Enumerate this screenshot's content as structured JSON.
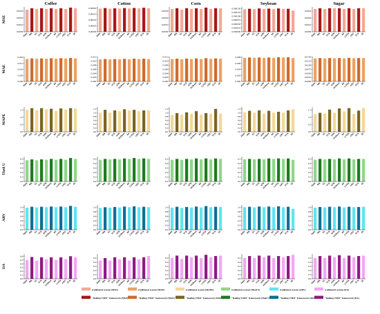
{
  "chart_data": {
    "type": "bar",
    "layout": "grid",
    "columns": [
      "Coffee",
      "Cotton",
      "Corn",
      "Soybean",
      "Sugar"
    ],
    "rows": [
      {
        "metric": "MSE",
        "ticks": [
          [
            "0.0003",
            "0.0002",
            "0.0001",
            "0.0000"
          ],
          [
            "0.00020",
            "0.00015",
            "0.00010",
            "0.00005",
            "0.00000"
          ],
          [
            "0.0003",
            "0.0002",
            "0.0001",
            "0.0000"
          ],
          [
            "0.000150",
            "0.000125",
            "0.000100",
            "0.000075",
            "0.000050",
            "0.000025",
            "0.000000"
          ],
          [
            "0.0003",
            "0.0002",
            "0.0001",
            "0.0000"
          ]
        ],
        "ylim": [
          [
            0,
            0.00036
          ],
          [
            0,
            0.00021
          ],
          [
            0,
            0.00036
          ],
          [
            0,
            0.00016
          ],
          [
            0,
            0.00036
          ]
        ],
        "values": [
          [
            0.00032,
            0.00034,
            0.00033,
            0.00034,
            0.00033,
            0.00034,
            0.00033,
            0.00034,
            0.00033,
            0.00035,
            0.00034
          ],
          [
            0.000195,
            0.0002,
            0.000195,
            0.000198,
            0.000196,
            0.0002,
            0.000197,
            0.000201,
            0.000198,
            0.000203,
            0.000199
          ],
          [
            0.00033,
            0.00034,
            0.00032,
            0.00034,
            0.00033,
            0.00034,
            0.00033,
            0.00035,
            0.00033,
            0.00034,
            0.00034
          ],
          [
            0.000145,
            0.000148,
            0.000146,
            0.00015,
            0.000147,
            0.000149,
            0.000146,
            0.00015,
            0.000147,
            0.000148,
            0.000136
          ],
          [
            0.00033,
            0.00034,
            0.00033,
            0.00034,
            0.00034,
            0.00034,
            0.00033,
            0.00034,
            0.00033,
            0.00034,
            0.00034
          ]
        ]
      },
      {
        "metric": "MAE",
        "ticks": [
          [
            "0.020",
            "0.015",
            "0.010",
            "0.005",
            "0.000"
          ],
          [
            "0.012",
            "0.010",
            "0.008",
            "0.006",
            "0.004",
            "0.002",
            "0.000"
          ],
          [
            "0.012",
            "0.010",
            "0.008",
            "0.006",
            "0.004",
            "0.002",
            "0.000"
          ],
          [
            "0.008",
            "0.006",
            "0.004",
            "0.002",
            "0.000"
          ],
          [
            "0.0150",
            "0.0125",
            "0.0100",
            "0.0075",
            "0.0050",
            "0.0025",
            "0.0000"
          ]
        ],
        "ylim": [
          [
            0,
            0.0205
          ],
          [
            0,
            0.0122
          ],
          [
            0,
            0.0122
          ],
          [
            0,
            0.0082
          ],
          [
            0,
            0.0152
          ]
        ],
        "values": [
          [
            0.0185,
            0.019,
            0.0187,
            0.019,
            0.0188,
            0.0191,
            0.0188,
            0.0192,
            0.0189,
            0.0194,
            0.019
          ],
          [
            0.0108,
            0.011,
            0.0108,
            0.011,
            0.0109,
            0.0111,
            0.0109,
            0.0112,
            0.011,
            0.0112,
            0.011
          ],
          [
            0.011,
            0.0112,
            0.0109,
            0.0112,
            0.011,
            0.0113,
            0.011,
            0.0114,
            0.0111,
            0.0113,
            0.0112
          ],
          [
            0.0078,
            0.0079,
            0.0078,
            0.0079,
            0.0078,
            0.0079,
            0.0078,
            0.008,
            0.0079,
            0.008,
            0.0077
          ],
          [
            0.0141,
            0.0143,
            0.0141,
            0.0143,
            0.0142,
            0.0143,
            0.0141,
            0.0144,
            0.0142,
            0.0143,
            0.0143
          ]
        ]
      },
      {
        "metric": "MAPE",
        "ticks": [
          [
            "1.5",
            "1.0",
            "0.5",
            "0.0"
          ],
          [
            "1.2",
            "1.0",
            "0.8",
            "0.6",
            "0.4",
            "0.2",
            "0.0"
          ],
          [
            "1.2",
            "1.0",
            "0.8",
            "0.6",
            "0.4",
            "0.2",
            "0.0"
          ],
          [
            "1.2",
            "1.0",
            "0.8",
            "0.6",
            "0.4",
            "0.2",
            "0.0"
          ],
          [
            "1.5",
            "1.0",
            "0.5",
            "0.0"
          ]
        ],
        "ylim": [
          [
            0,
            1.7
          ],
          [
            0,
            1.3
          ],
          [
            0,
            1.3
          ],
          [
            0,
            1.3
          ],
          [
            0,
            1.7
          ]
        ],
        "values": [
          [
            1.5,
            1.62,
            1.47,
            1.62,
            1.54,
            1.58,
            1.42,
            1.6,
            1.52,
            1.62,
            1.6
          ],
          [
            1.0,
            1.15,
            1.0,
            1.12,
            1.08,
            1.18,
            1.12,
            1.15,
            1.08,
            1.12,
            1.12
          ],
          [
            0.88,
            0.98,
            0.9,
            1.02,
            0.95,
            1.08,
            0.9,
            0.98,
            0.95,
            1.2,
            0.95
          ],
          [
            1.02,
            1.1,
            1.0,
            1.12,
            0.95,
            1.1,
            1.0,
            1.05,
            1.0,
            1.12,
            1.18
          ],
          [
            1.2,
            1.3,
            1.25,
            1.52,
            1.3,
            1.6,
            1.4,
            1.62,
            1.22,
            1.45,
            1.62
          ]
        ]
      },
      {
        "metric": "Theil U",
        "ticks": [
          [
            "0.5",
            "0.4",
            "0.3",
            "0.2",
            "0.1",
            "0.0"
          ],
          [
            "0.5",
            "0.4",
            "0.3",
            "0.2",
            "0.1",
            "0.0"
          ],
          [
            "0.5",
            "0.4",
            "0.3",
            "0.2",
            "0.1",
            "0.0"
          ],
          [
            "0.5",
            "0.4",
            "0.3",
            "0.2",
            "0.1",
            "0.0"
          ],
          [
            "0.5",
            "0.4",
            "0.3",
            "0.2",
            "0.1",
            "0.0"
          ]
        ],
        "ylim": [
          [
            0,
            0.55
          ],
          [
            0,
            0.55
          ],
          [
            0,
            0.55
          ],
          [
            0,
            0.55
          ],
          [
            0,
            0.55
          ]
        ],
        "values": [
          [
            0.47,
            0.49,
            0.47,
            0.49,
            0.48,
            0.5,
            0.48,
            0.5,
            0.48,
            0.52,
            0.5
          ],
          [
            0.48,
            0.5,
            0.49,
            0.5,
            0.49,
            0.51,
            0.5,
            0.52,
            0.5,
            0.51,
            0.5
          ],
          [
            0.48,
            0.5,
            0.48,
            0.5,
            0.49,
            0.51,
            0.49,
            0.51,
            0.49,
            0.51,
            0.5
          ],
          [
            0.49,
            0.5,
            0.49,
            0.5,
            0.49,
            0.51,
            0.5,
            0.51,
            0.5,
            0.51,
            0.48
          ],
          [
            0.48,
            0.5,
            0.49,
            0.5,
            0.49,
            0.51,
            0.49,
            0.51,
            0.49,
            0.5,
            0.5
          ]
        ]
      },
      {
        "metric": "ARV",
        "ticks": [
          [
            "1.0",
            "0.8",
            "0.6",
            "0.4",
            "0.2",
            "0.0"
          ],
          [
            "1.0",
            "0.8",
            "0.6",
            "0.4",
            "0.2",
            "0.0"
          ],
          [
            "1.0",
            "0.8",
            "0.6",
            "0.4",
            "0.2",
            "0.0"
          ],
          [
            "1.0",
            "0.8",
            "0.6",
            "0.4",
            "0.2",
            "0.0"
          ],
          [
            "1.0",
            "0.8",
            "0.6",
            "0.4",
            "0.2",
            "0.0"
          ]
        ],
        "ylim": [
          [
            0,
            1.1
          ],
          [
            0,
            1.1
          ],
          [
            0,
            1.1
          ],
          [
            0,
            1.1
          ],
          [
            0,
            1.1
          ]
        ],
        "values": [
          [
            0.98,
            1.02,
            0.99,
            1.02,
            1.0,
            1.03,
            1.0,
            1.03,
            1.0,
            1.06,
            1.02
          ],
          [
            0.97,
            1.0,
            0.98,
            1.01,
            0.99,
            1.03,
            1.0,
            1.04,
            1.0,
            1.02,
            1.0
          ],
          [
            0.98,
            1.02,
            0.97,
            1.01,
            0.99,
            1.03,
            0.99,
            1.05,
            1.0,
            1.02,
            1.01
          ],
          [
            1.0,
            1.02,
            0.99,
            1.03,
            1.0,
            1.03,
            1.0,
            1.04,
            1.0,
            1.02,
            0.93
          ],
          [
            0.98,
            1.01,
            0.99,
            1.02,
            1.0,
            1.03,
            0.99,
            1.02,
            1.0,
            1.01,
            1.02
          ]
        ]
      },
      {
        "metric": "DA",
        "ticks": [
          [
            "0.6",
            "0.5",
            "0.4",
            "0.3",
            "0.2",
            "0.1",
            "0.0"
          ],
          [
            "0.5",
            "0.4",
            "0.3",
            "0.2",
            "0.1",
            "0.0"
          ],
          [
            "0.5",
            "0.4",
            "0.3",
            "0.2",
            "0.1",
            "0.0"
          ],
          [
            "0.5",
            "0.4",
            "0.3",
            "0.2",
            "0.1",
            "0.0"
          ],
          [
            "0.5",
            "0.4",
            "0.3",
            "0.2",
            "0.1",
            "0.0"
          ]
        ],
        "ylim": [
          [
            0,
            0.66
          ],
          [
            0,
            0.6
          ],
          [
            0,
            0.6
          ],
          [
            0,
            0.6
          ],
          [
            0,
            0.6
          ]
        ],
        "values": [
          [
            0.5,
            0.58,
            0.48,
            0.57,
            0.52,
            0.57,
            0.5,
            0.57,
            0.52,
            0.6,
            0.57
          ],
          [
            0.44,
            0.5,
            0.44,
            0.52,
            0.47,
            0.52,
            0.44,
            0.52,
            0.47,
            0.52,
            0.55
          ],
          [
            0.5,
            0.56,
            0.48,
            0.56,
            0.52,
            0.56,
            0.5,
            0.58,
            0.52,
            0.55,
            0.56
          ],
          [
            0.5,
            0.55,
            0.5,
            0.56,
            0.52,
            0.56,
            0.5,
            0.55,
            0.52,
            0.55,
            0.58
          ],
          [
            0.5,
            0.55,
            0.5,
            0.56,
            0.52,
            0.57,
            0.5,
            0.56,
            0.52,
            0.55,
            0.56
          ]
        ]
      }
    ],
    "categories": [
      "Holtz",
      "MR",
      "ES",
      "SVR",
      "ANN",
      "XGBoost",
      "RF",
      "LSTM",
      "GRU",
      "TCN",
      "PF"
    ],
    "bar_colors": [
      [
        "#f4a896",
        "#a81717"
      ],
      [
        "#eea162",
        "#cf6a2d"
      ],
      [
        "#f3d796",
        "#7a6423"
      ],
      [
        "#8fd68a",
        "#1e7a1e"
      ],
      [
        "#5fe4f0",
        "#0f6e94"
      ],
      [
        "#f3a6f5",
        "#8e1a82"
      ]
    ],
    "legend": [
      [
        {
          "label": "traditional system (MSE)",
          "color": "#f4a896"
        },
        {
          "label": "traditional system (MAE)",
          "color": "#eea162"
        },
        {
          "label": "traditional system (MAPE)",
          "color": "#f3d796"
        },
        {
          "label": "traditional system (Theil U)",
          "color": "#8fd68a"
        },
        {
          "label": "traditional system (ARV)",
          "color": "#5fe4f0"
        },
        {
          "label": "traditional system (DA)",
          "color": "#f3a6f5"
        }
      ],
      [
        {
          "label": "\"Rolling VMD\" framework (MSE)",
          "color": "#a81717"
        },
        {
          "label": "\"Rolling VMD\" framework (MAE)",
          "color": "#cf6a2d"
        },
        {
          "label": "\"Rolling VMD\" framework (MAPE)",
          "color": "#7a6423"
        },
        {
          "label": "\"Rolling VMD\" framework (Theil U)",
          "color": "#1e7a1e"
        },
        {
          "label": "\"Rolling VMD\" framework (ARV)",
          "color": "#0f6e94"
        },
        {
          "label": "\"Rolling VMD\" framework (DA)",
          "color": "#8e1a82"
        }
      ]
    ],
    "legend_position": "bottom"
  }
}
